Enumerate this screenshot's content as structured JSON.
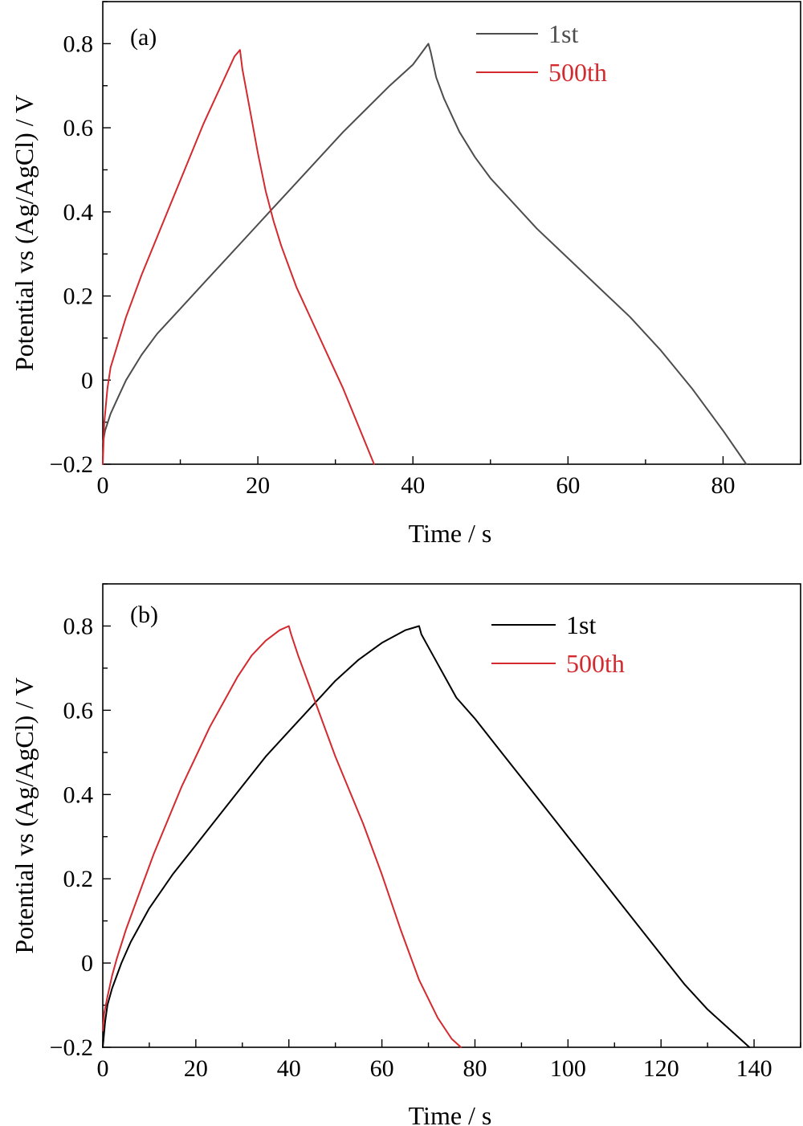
{
  "chart_data": [
    {
      "type": "line",
      "panel_label": "(a)",
      "xlabel": "Time / s",
      "ylabel": "Potential vs (Ag/AgCl) / V",
      "xlim": [
        0,
        90
      ],
      "ylim": [
        -0.2,
        0.9
      ],
      "xticks": [
        0,
        20,
        40,
        60,
        80
      ],
      "yticks": [
        -0.2,
        0,
        0.2,
        0.4,
        0.6,
        0.8
      ],
      "xtick_labels": [
        "0",
        "20",
        "40",
        "60",
        "80"
      ],
      "ytick_labels": [
        "−0.2",
        "0",
        "0.2",
        "0.4",
        "0.6",
        "0.8"
      ],
      "grid": false,
      "legend_position": "top-right",
      "series": [
        {
          "name": "1st",
          "color": "#4d4d4d",
          "x": [
            0,
            0.3,
            1,
            2,
            3,
            5,
            7,
            10,
            13,
            16,
            19,
            22,
            25,
            28,
            31,
            34,
            37,
            40,
            42,
            42.3,
            43,
            44,
            45,
            46,
            48,
            50,
            53,
            56,
            60,
            64,
            68,
            72,
            76,
            80,
            83
          ],
          "y": [
            -0.15,
            -0.12,
            -0.08,
            -0.04,
            0.0,
            0.06,
            0.11,
            0.17,
            0.23,
            0.29,
            0.35,
            0.41,
            0.47,
            0.53,
            0.59,
            0.645,
            0.7,
            0.75,
            0.8,
            0.78,
            0.72,
            0.67,
            0.63,
            0.59,
            0.53,
            0.48,
            0.42,
            0.36,
            0.29,
            0.22,
            0.15,
            0.07,
            -0.02,
            -0.12,
            -0.2
          ]
        },
        {
          "name": "500th",
          "color": "#d42a2f",
          "x": [
            0,
            0.2,
            0.6,
            1,
            2,
            3,
            5,
            7,
            9,
            11,
            13,
            15,
            17,
            17.7,
            18,
            19,
            20,
            21,
            22,
            23,
            24,
            25,
            27,
            29,
            31,
            33,
            35
          ],
          "y": [
            -0.2,
            -0.1,
            -0.02,
            0.03,
            0.09,
            0.15,
            0.25,
            0.34,
            0.43,
            0.52,
            0.61,
            0.69,
            0.77,
            0.785,
            0.74,
            0.64,
            0.54,
            0.45,
            0.38,
            0.32,
            0.27,
            0.22,
            0.14,
            0.06,
            -0.02,
            -0.11,
            -0.2
          ]
        }
      ]
    },
    {
      "type": "line",
      "panel_label": "(b)",
      "xlabel": "Time / s",
      "ylabel": "Potential vs (Ag/AgCl) / V",
      "xlim": [
        0,
        150
      ],
      "ylim": [
        -0.2,
        0.9
      ],
      "xticks": [
        0,
        20,
        40,
        60,
        80,
        100,
        120,
        140
      ],
      "yticks": [
        -0.2,
        0,
        0.2,
        0.4,
        0.6,
        0.8
      ],
      "xtick_labels": [
        "0",
        "20",
        "40",
        "60",
        "80",
        "100",
        "120",
        "140"
      ],
      "ytick_labels": [
        "−0.2",
        "0",
        "0.2",
        "0.4",
        "0.6",
        "0.8"
      ],
      "grid": false,
      "legend_position": "top-right",
      "series": [
        {
          "name": "1st",
          "color": "#000000",
          "x": [
            0,
            0.5,
            1,
            2,
            4,
            6,
            10,
            15,
            20,
            25,
            30,
            35,
            40,
            45,
            50,
            55,
            60,
            65,
            68,
            68.5,
            70,
            72,
            74,
            76,
            80,
            85,
            90,
            95,
            100,
            105,
            110,
            115,
            120,
            125,
            130,
            135,
            139
          ],
          "y": [
            -0.2,
            -0.14,
            -0.1,
            -0.06,
            0.0,
            0.05,
            0.13,
            0.21,
            0.28,
            0.35,
            0.42,
            0.49,
            0.55,
            0.61,
            0.67,
            0.72,
            0.76,
            0.79,
            0.8,
            0.78,
            0.75,
            0.71,
            0.67,
            0.63,
            0.58,
            0.51,
            0.44,
            0.37,
            0.3,
            0.23,
            0.16,
            0.09,
            0.02,
            -0.05,
            -0.11,
            -0.16,
            -0.2
          ]
        },
        {
          "name": "500th",
          "color": "#d42a2f",
          "x": [
            0,
            0.3,
            1,
            2,
            3,
            5,
            8,
            11,
            14,
            17,
            20,
            23,
            26,
            29,
            32,
            35,
            38,
            40,
            40.5,
            42,
            44,
            46,
            48,
            50,
            53,
            56,
            60,
            64,
            68,
            72,
            75,
            77
          ],
          "y": [
            -0.16,
            -0.12,
            -0.08,
            -0.03,
            0.01,
            0.08,
            0.17,
            0.26,
            0.34,
            0.42,
            0.49,
            0.56,
            0.62,
            0.68,
            0.73,
            0.765,
            0.79,
            0.8,
            0.78,
            0.73,
            0.67,
            0.61,
            0.55,
            0.49,
            0.41,
            0.33,
            0.21,
            0.08,
            -0.04,
            -0.13,
            -0.18,
            -0.2
          ]
        }
      ]
    }
  ]
}
